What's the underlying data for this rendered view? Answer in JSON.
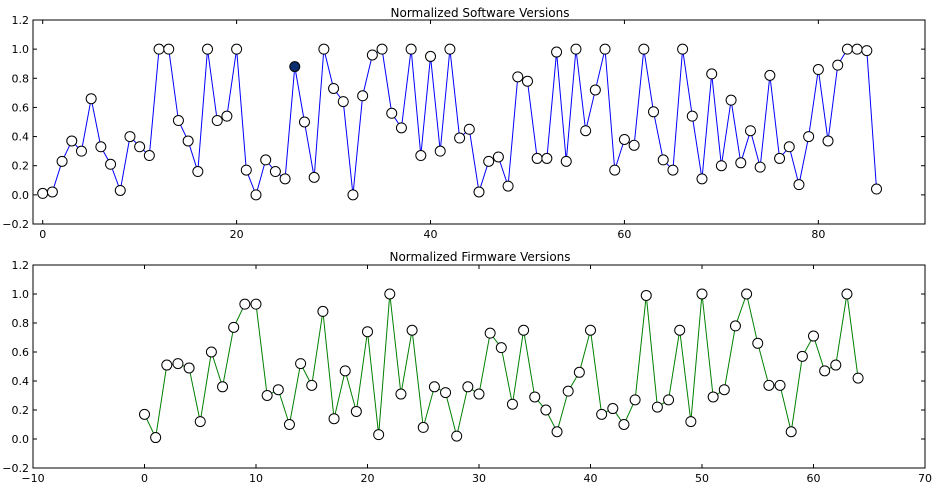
{
  "chart_data": [
    {
      "type": "line",
      "title": "Normalized Software Versions",
      "xlabel": "",
      "ylabel": "",
      "xlim": [
        -1,
        91
      ],
      "ylim": [
        -0.2,
        1.2
      ],
      "xticks": [
        0,
        20,
        40,
        60,
        80
      ],
      "yticks": [
        -0.2,
        0.0,
        0.2,
        0.4,
        0.6,
        0.8,
        1.0,
        1.2
      ],
      "x_tick_labels": [
        "0",
        "20",
        "40",
        "60",
        "80"
      ],
      "y_tick_labels": [
        "−0.2",
        "0.0",
        "0.2",
        "0.4",
        "0.6",
        "0.8",
        "1.0",
        "1.2"
      ],
      "grid": false,
      "line_color": "#0000ff",
      "marker_face": "#ffffff",
      "marker_edge": "#000000",
      "highlight_index": 26,
      "highlight_color": "#0d2e6e",
      "series": [
        {
          "values": [
            0.01,
            0.02,
            0.23,
            0.37,
            0.3,
            0.66,
            0.33,
            0.21,
            0.03,
            0.4,
            0.33,
            0.27,
            1.0,
            1.0,
            0.51,
            0.37,
            0.16,
            1.0,
            0.51,
            0.54,
            1.0,
            0.17,
            0.0,
            0.24,
            0.16,
            0.11,
            0.88,
            0.5,
            0.12,
            1.0,
            0.73,
            0.64,
            0.0,
            0.68,
            0.96,
            1.0,
            0.56,
            0.46,
            1.0,
            0.27,
            0.95,
            0.3,
            1.0,
            0.39,
            0.45,
            0.02,
            0.23,
            0.26,
            0.06,
            0.81,
            0.78,
            0.25,
            0.25,
            0.98,
            0.23,
            1.0,
            0.44,
            0.72,
            1.0,
            0.17,
            0.38,
            0.34,
            1.0,
            0.57,
            0.24,
            0.17,
            1.0,
            0.54,
            0.11,
            0.83,
            0.2,
            0.65,
            0.22,
            0.44,
            0.19,
            0.82,
            0.25,
            0.33,
            0.07,
            0.4,
            0.86,
            0.37,
            0.89,
            1.0,
            1.0,
            0.99,
            0.04
          ]
        }
      ]
    },
    {
      "type": "line",
      "title": "Normalized Firmware Versions",
      "xlabel": "",
      "ylabel": "",
      "xlim": [
        -10,
        70
      ],
      "ylim": [
        -0.2,
        1.2
      ],
      "xticks": [
        -10,
        0,
        10,
        20,
        30,
        40,
        50,
        60,
        70
      ],
      "yticks": [
        -0.2,
        0.0,
        0.2,
        0.4,
        0.6,
        0.8,
        1.0,
        1.2
      ],
      "x_tick_labels": [
        "−10",
        "0",
        "10",
        "20",
        "30",
        "40",
        "50",
        "60",
        "70"
      ],
      "y_tick_labels": [
        "−0.2",
        "0.0",
        "0.2",
        "0.4",
        "0.6",
        "0.8",
        "1.0",
        "1.2"
      ],
      "grid": false,
      "line_color": "#008000",
      "marker_face": "#ffffff",
      "marker_edge": "#000000",
      "series": [
        {
          "values": [
            0.17,
            0.01,
            0.51,
            0.52,
            0.49,
            0.12,
            0.6,
            0.36,
            0.77,
            0.93,
            0.93,
            0.3,
            0.34,
            0.1,
            0.52,
            0.37,
            0.88,
            0.14,
            0.47,
            0.19,
            0.74,
            0.03,
            1.0,
            0.31,
            0.75,
            0.08,
            0.36,
            0.32,
            0.02,
            0.36,
            0.31,
            0.73,
            0.63,
            0.24,
            0.75,
            0.29,
            0.2,
            0.05,
            0.33,
            0.46,
            0.75,
            0.17,
            0.21,
            0.1,
            0.27,
            0.99,
            0.22,
            0.27,
            0.75,
            0.12,
            1.0,
            0.29,
            0.34,
            0.78,
            1.0,
            0.66,
            0.37,
            0.37,
            0.05,
            0.57,
            0.71,
            0.47,
            0.51,
            1.0,
            0.42
          ]
        }
      ]
    }
  ]
}
